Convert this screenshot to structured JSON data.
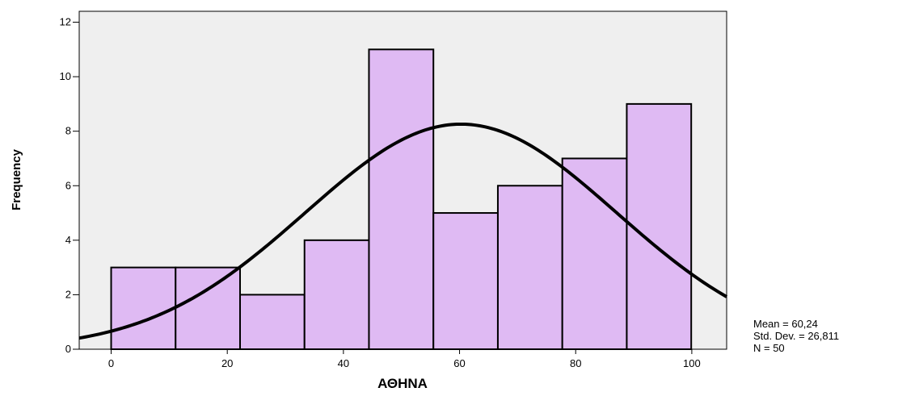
{
  "chart_data": {
    "type": "bar",
    "xlabel": "ΑΘΗΝΑ",
    "ylabel": "Frequency",
    "bins": [
      {
        "start": 0,
        "end": 11.1,
        "count": 3
      },
      {
        "start": 11.1,
        "end": 22.2,
        "count": 3
      },
      {
        "start": 22.2,
        "end": 33.3,
        "count": 2
      },
      {
        "start": 33.3,
        "end": 44.4,
        "count": 4
      },
      {
        "start": 44.4,
        "end": 55.5,
        "count": 11
      },
      {
        "start": 55.5,
        "end": 66.6,
        "count": 5
      },
      {
        "start": 66.6,
        "end": 77.7,
        "count": 6
      },
      {
        "start": 77.7,
        "end": 88.8,
        "count": 7
      },
      {
        "start": 88.8,
        "end": 99.9,
        "count": 9
      }
    ],
    "xlim": [
      -5.5,
      106
    ],
    "ylim": [
      0,
      12.4
    ],
    "xticks": [
      0,
      20,
      40,
      60,
      80,
      100
    ],
    "yticks": [
      0,
      2,
      4,
      6,
      8,
      10,
      12
    ],
    "normal_curve": {
      "mean": 60.24,
      "sd": 26.811,
      "n": 50,
      "bin_width": 11.1
    },
    "bar_color": "#dfbaf3",
    "plot_background": "#efefef",
    "curve_color": "#000000"
  },
  "stats": {
    "mean": "Mean = 60,24",
    "std": "Std. Dev. = 26,811",
    "n": "N = 50"
  }
}
